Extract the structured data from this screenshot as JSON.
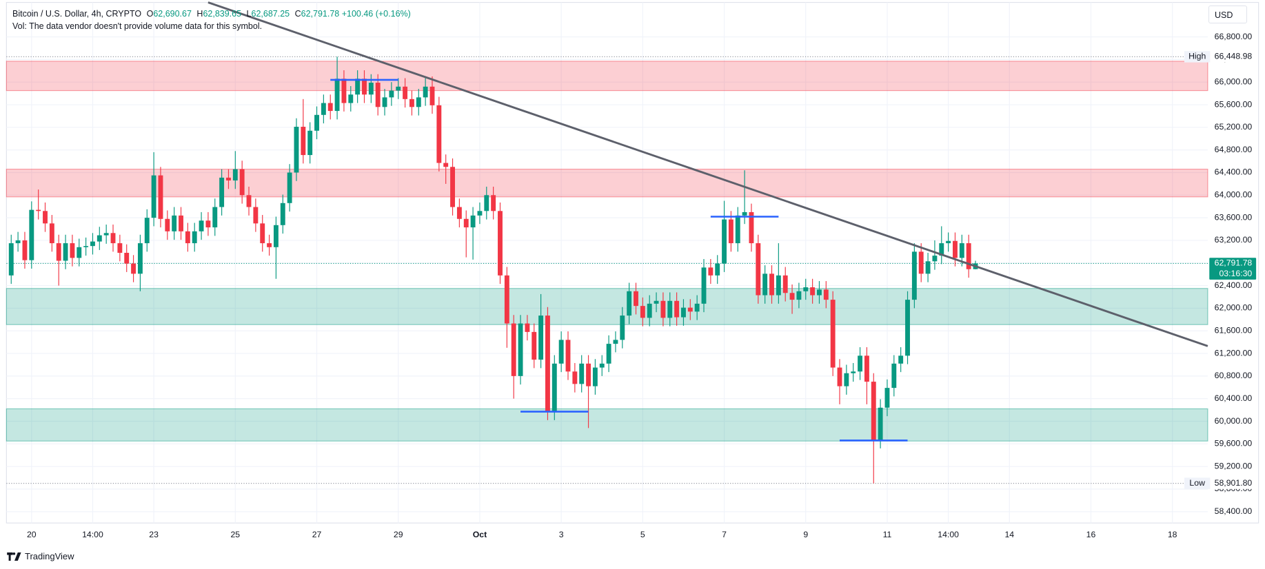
{
  "header": {
    "symbol": "Bitcoin / U.S. Dollar, 4h, CRYPTO",
    "o_key": "O",
    "open": "62,690.67",
    "h_key": "H",
    "high": "62,839.65",
    "l_key": "L",
    "low": "62,687.25",
    "c_key": "C",
    "close": "62,791.78",
    "change": "+100.46 (+0.16%)",
    "volume_note": "Vol: The data vendor doesn't provide volume data for this symbol."
  },
  "currency": "USD",
  "footer": {
    "brand": "TradingView"
  },
  "chart_data": {
    "type": "candlestick",
    "up_color": "#089981",
    "down_color": "#f23645",
    "xlim": [
      -0.7,
      176.2
    ],
    "ylim": [
      58200,
      67410
    ],
    "xticks": [
      {
        "value": 3,
        "label": "20"
      },
      {
        "value": 12,
        "label": "14:00"
      },
      {
        "value": 21,
        "label": "23"
      },
      {
        "value": 33,
        "label": "25"
      },
      {
        "value": 45,
        "label": "27"
      },
      {
        "value": 57,
        "label": "29"
      },
      {
        "value": 69,
        "label": "Oct"
      },
      {
        "value": 81,
        "label": "3"
      },
      {
        "value": 93,
        "label": "5"
      },
      {
        "value": 105,
        "label": "7"
      },
      {
        "value": 117,
        "label": "9"
      },
      {
        "value": 129,
        "label": "11"
      },
      {
        "value": 138,
        "label": "14:00"
      },
      {
        "value": 147,
        "label": "14"
      },
      {
        "value": 159,
        "label": "16"
      },
      {
        "value": 171,
        "label": "18"
      }
    ],
    "yticks": [
      {
        "value": 58400,
        "label": "58,400.00"
      },
      {
        "value": 58800,
        "label": "58,800.00"
      },
      {
        "value": 59200,
        "label": "59,200.00"
      },
      {
        "value": 59600,
        "label": "59,600.00"
      },
      {
        "value": 60000,
        "label": "60,000.00"
      },
      {
        "value": 60400,
        "label": "60,400.00"
      },
      {
        "value": 60800,
        "label": "60,800.00"
      },
      {
        "value": 61200,
        "label": "61,200.00"
      },
      {
        "value": 61600,
        "label": "61,600.00"
      },
      {
        "value": 62000,
        "label": "62,000.00"
      },
      {
        "value": 62400,
        "label": "62,400.00"
      },
      {
        "value": 62800,
        "label": "62,800.00"
      },
      {
        "value": 63200,
        "label": "63,200.00"
      },
      {
        "value": 63600,
        "label": "63,600.00"
      },
      {
        "value": 64000,
        "label": "64,000.00"
      },
      {
        "value": 64400,
        "label": "64,400.00"
      },
      {
        "value": 64800,
        "label": "64,800.00"
      },
      {
        "value": 65200,
        "label": "65,200.00"
      },
      {
        "value": 65600,
        "label": "65,600.00"
      },
      {
        "value": 66000,
        "label": "66,000.00"
      },
      {
        "value": 66400,
        "label": "66,400.00"
      },
      {
        "value": 66800,
        "label": "66,800.00"
      }
    ],
    "grid": true,
    "open": [
      62580,
      63150,
      63200,
      62850,
      63740,
      63720,
      63500,
      63150,
      62840,
      63150,
      62890,
      63080,
      63100,
      63180,
      63290,
      63330,
      63150,
      62980,
      62790,
      62610,
      63150,
      63600,
      64350,
      63580,
      63360,
      63640,
      63360,
      63150,
      63360,
      63550,
      63430,
      63790,
      64310,
      64260,
      64460,
      64000,
      63790,
      63500,
      63150,
      63080,
      63470,
      63860,
      64400,
      65210,
      64710,
      65140,
      65420,
      65630,
      65490,
      66060,
      65630,
      65780,
      66060,
      65780,
      65990,
      65560,
      65730,
      65850,
      65920,
      65700,
      65560,
      65730,
      65920,
      65590,
      64570,
      64500,
      63790,
      63580,
      63430,
      63640,
      63720,
      64000,
      63720,
      62580,
      61730,
      60800,
      61730,
      61580,
      61090,
      61870,
      60170,
      61020,
      61440,
      60880,
      60660,
      61020,
      60620,
      60950,
      61020,
      61370,
      61440,
      61870,
      62300,
      62040,
      61830,
      62080,
      62130,
      61830,
      62130,
      61840,
      62010,
      61940,
      62080,
      62720,
      62580,
      62790,
      63570,
      63150,
      63640,
      63700,
      63150,
      62230,
      62610,
      62230,
      62580,
      62270,
      62150,
      62300,
      62370,
      62230,
      62330,
      62150,
      60950,
      60620,
      60850,
      60880,
      61160,
      60700,
      59670,
      60240,
      60590,
      61020,
      61160,
      62150,
      63000,
      62610,
      62830,
      62930,
      63150,
      63190,
      62890,
      63150,
      62690.67
    ],
    "high": [
      63300,
      63350,
      63350,
      63890,
      64100,
      63870,
      63650,
      63300,
      63300,
      63300,
      63230,
      63250,
      63330,
      63440,
      63480,
      63480,
      63300,
      63130,
      62940,
      63300,
      63750,
      64760,
      64500,
      63730,
      63790,
      63790,
      63510,
      63510,
      63700,
      63700,
      63940,
      64460,
      64460,
      64780,
      64610,
      64150,
      63940,
      63650,
      63300,
      63620,
      64010,
      64550,
      65360,
      65700,
      65290,
      65570,
      65780,
      65780,
      66448.98,
      66210,
      65930,
      66210,
      66210,
      66140,
      66140,
      65880,
      66000,
      66070,
      66070,
      65850,
      65880,
      66070,
      66100,
      65740,
      64720,
      64650,
      63940,
      63730,
      63790,
      63870,
      64150,
      64150,
      63870,
      62730,
      61880,
      61880,
      61880,
      61730,
      62250,
      62020,
      61170,
      61590,
      61590,
      61030,
      61170,
      61170,
      61100,
      61170,
      61520,
      61590,
      62020,
      62450,
      62450,
      62190,
      62230,
      62280,
      62280,
      62280,
      62280,
      62160,
      62160,
      62230,
      62870,
      62870,
      62940,
      63900,
      63720,
      63790,
      64440,
      63850,
      63300,
      62760,
      62760,
      63150,
      62730,
      62420,
      62450,
      62520,
      62520,
      62480,
      62480,
      62300,
      61100,
      61000,
      61030,
      61310,
      61310,
      60850,
      60390,
      60740,
      61170,
      61310,
      62300,
      63150,
      63150,
      62980,
      63200,
      63450,
      63340,
      63340,
      63300,
      63300,
      62839.65
    ],
    "low": [
      62430,
      63000,
      62700,
      62700,
      63570,
      63350,
      63000,
      62400,
      62690,
      62740,
      62740,
      62930,
      62950,
      63030,
      63140,
      63000,
      62830,
      62640,
      62460,
      62300,
      63000,
      63450,
      63430,
      63210,
      63210,
      63210,
      63000,
      63000,
      63210,
      63280,
      63280,
      63640,
      64110,
      64110,
      63850,
      63640,
      63350,
      63000,
      62930,
      62520,
      63320,
      63710,
      64250,
      64560,
      64560,
      64990,
      65270,
      65340,
      65340,
      65480,
      65480,
      65630,
      65630,
      65630,
      65410,
      65410,
      65580,
      65700,
      65550,
      65410,
      65410,
      65580,
      65440,
      64420,
      64200,
      63640,
      63430,
      62900,
      62860,
      63490,
      63570,
      63570,
      62430,
      61300,
      60400,
      60650,
      61430,
      60940,
      60940,
      60020,
      60020,
      60870,
      60730,
      60510,
      60510,
      59880,
      60470,
      60800,
      60870,
      61220,
      61290,
      61720,
      61890,
      61680,
      61680,
      61930,
      61680,
      61680,
      61690,
      61690,
      61790,
      61790,
      61930,
      62430,
      62430,
      62640,
      63000,
      63000,
      63490,
      63000,
      62080,
      62080,
      62080,
      62080,
      62120,
      61900,
      62000,
      62150,
      62080,
      62080,
      62000,
      60800,
      60300,
      60470,
      60700,
      60730,
      60300,
      58901.8,
      59520,
      60090,
      60440,
      60870,
      61010,
      62000,
      62460,
      62460,
      62680,
      62780,
      63000,
      62740,
      62740,
      62540,
      62687.25
    ],
    "close": [
      63150,
      63200,
      62850,
      63740,
      63720,
      63500,
      63150,
      62840,
      63150,
      62890,
      63080,
      63100,
      63180,
      63290,
      63330,
      63150,
      62980,
      62790,
      62610,
      63150,
      63600,
      64350,
      63580,
      63360,
      63640,
      63360,
      63150,
      63360,
      63550,
      63430,
      63790,
      64310,
      64260,
      64460,
      64000,
      63790,
      63500,
      63150,
      63080,
      63470,
      63860,
      64400,
      65210,
      64710,
      65140,
      65420,
      65630,
      65490,
      66060,
      65630,
      65780,
      66060,
      65780,
      65990,
      65560,
      65730,
      65850,
      65920,
      65700,
      65560,
      65730,
      65920,
      65590,
      64570,
      64500,
      63790,
      63580,
      63430,
      63640,
      63720,
      64000,
      63720,
      62580,
      61730,
      60800,
      61730,
      61580,
      61090,
      61870,
      60170,
      61020,
      61440,
      60880,
      60660,
      61020,
      60620,
      60950,
      61020,
      61370,
      61440,
      61870,
      62300,
      62040,
      61830,
      62080,
      62130,
      61830,
      62130,
      61840,
      62010,
      61940,
      62080,
      62720,
      62580,
      62790,
      63570,
      63150,
      63640,
      63700,
      63150,
      62230,
      62610,
      62230,
      62580,
      62270,
      62150,
      62300,
      62370,
      62230,
      62330,
      62150,
      60950,
      60620,
      60850,
      60880,
      61160,
      60700,
      59670,
      60240,
      60590,
      61020,
      61160,
      62150,
      63000,
      62610,
      62830,
      62930,
      63150,
      63190,
      62890,
      63150,
      62690.67,
      62791.78
    ],
    "zones": [
      {
        "from": 65850,
        "to": 66370,
        "color": "#f23645"
      },
      {
        "from": 63970,
        "to": 64460,
        "color": "#f23645"
      },
      {
        "from": 61710,
        "to": 62350,
        "color": "#089981"
      },
      {
        "from": 59650,
        "to": 60220,
        "color": "#089981"
      }
    ],
    "levels": [
      {
        "value": 66040,
        "from": 47,
        "to": 57,
        "color": "#2962ff"
      },
      {
        "value": 60170,
        "from": 75,
        "to": 85,
        "color": "#2962ff"
      },
      {
        "value": 63620,
        "from": 103,
        "to": 113,
        "color": "#2962ff"
      },
      {
        "value": 59660,
        "from": 122,
        "to": 132,
        "color": "#2962ff"
      }
    ],
    "trendline": {
      "from": [
        29,
        67410
      ],
      "to": [
        176.2,
        61330
      ],
      "color": "#5d606b"
    },
    "markers": [
      {
        "label": "High",
        "value": 66448.98,
        "value_label": "66,448.98"
      },
      {
        "label": "Low",
        "value": 58901.8,
        "value_label": "58,901.80"
      }
    ],
    "price_tag": {
      "value": 62791.78,
      "label": "62,791.78",
      "countdown": "03:16:30"
    }
  }
}
